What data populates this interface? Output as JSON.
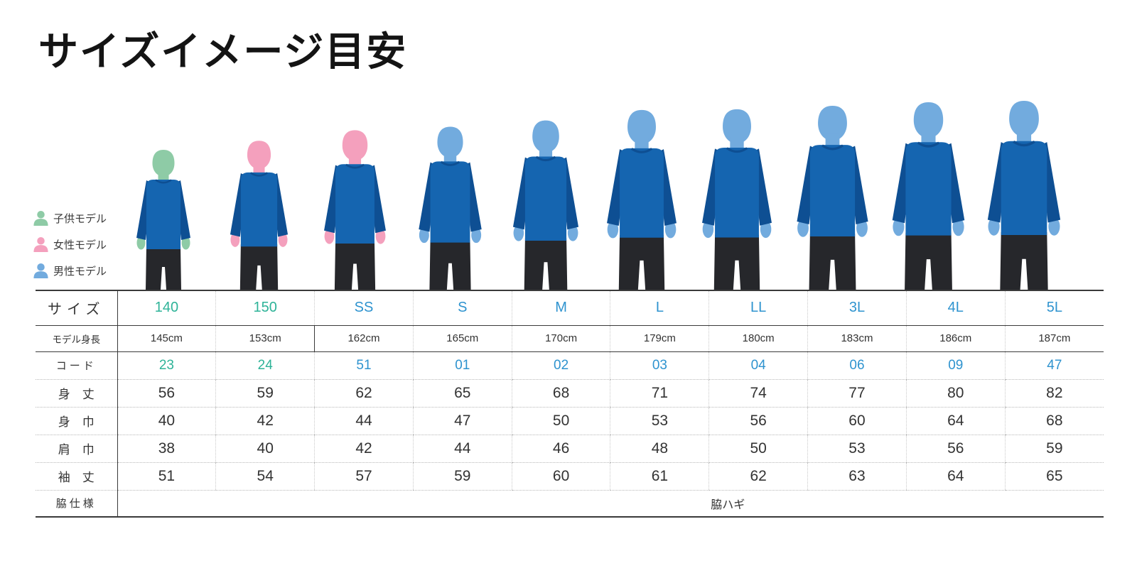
{
  "title": "サイズイメージ目安",
  "legend": {
    "items": [
      {
        "label": "子供モデル",
        "color": "#8ecba6"
      },
      {
        "label": "女性モデル",
        "color": "#f4a0bd"
      },
      {
        "label": "男性モデル",
        "color": "#72abde"
      }
    ]
  },
  "colors": {
    "shirt": "#1565b0",
    "shirt_dark": "#0e4f93",
    "pants": "#26272b",
    "accent_kids": "#2eb398",
    "accent_adult": "#2e93cf",
    "line": "#3a3a3a",
    "text": "#333333"
  },
  "model_colors": {
    "child": "#8ecba6",
    "female": "#f4a0bd",
    "male": "#72abde"
  },
  "models": [
    {
      "size": "140",
      "height_cm": 145,
      "model": "child"
    },
    {
      "size": "150",
      "height_cm": 153,
      "model": "female"
    },
    {
      "size": "SS",
      "height_cm": 162,
      "model": "female"
    },
    {
      "size": "S",
      "height_cm": 165,
      "model": "male"
    },
    {
      "size": "M",
      "height_cm": 170,
      "model": "male"
    },
    {
      "size": "L",
      "height_cm": 179,
      "model": "male"
    },
    {
      "size": "LL",
      "height_cm": 180,
      "model": "male"
    },
    {
      "size": "3L",
      "height_cm": 183,
      "model": "male"
    },
    {
      "size": "4L",
      "height_cm": 186,
      "model": "male"
    },
    {
      "size": "5L",
      "height_cm": 187,
      "model": "male"
    }
  ],
  "chart_data": {
    "type": "table",
    "title": "サイズイメージ目安",
    "kids_count": 2,
    "row_labels": {
      "size": "サイズ",
      "model_height": "モデル身長",
      "code": "コード",
      "body_length": "身　丈",
      "body_width": "身　巾",
      "shoulder_width": "肩　巾",
      "sleeve_length": "袖　丈",
      "side_spec": "脇仕様"
    },
    "columns": [
      "140",
      "150",
      "SS",
      "S",
      "M",
      "L",
      "LL",
      "3L",
      "4L",
      "5L"
    ],
    "model_heights": [
      "145cm",
      "153cm",
      "162cm",
      "165cm",
      "170cm",
      "179cm",
      "180cm",
      "183cm",
      "186cm",
      "187cm"
    ],
    "codes": [
      "23",
      "24",
      "51",
      "01",
      "02",
      "03",
      "04",
      "06",
      "09",
      "47"
    ],
    "body_length": [
      "56",
      "59",
      "62",
      "65",
      "68",
      "71",
      "74",
      "77",
      "80",
      "82"
    ],
    "body_width": [
      "40",
      "42",
      "44",
      "47",
      "50",
      "53",
      "56",
      "60",
      "64",
      "68"
    ],
    "shoulder_width": [
      "38",
      "40",
      "42",
      "44",
      "46",
      "48",
      "50",
      "53",
      "56",
      "59"
    ],
    "sleeve_length": [
      "51",
      "54",
      "57",
      "59",
      "60",
      "61",
      "62",
      "63",
      "64",
      "65"
    ],
    "side_spec_value": "脇ハギ"
  }
}
